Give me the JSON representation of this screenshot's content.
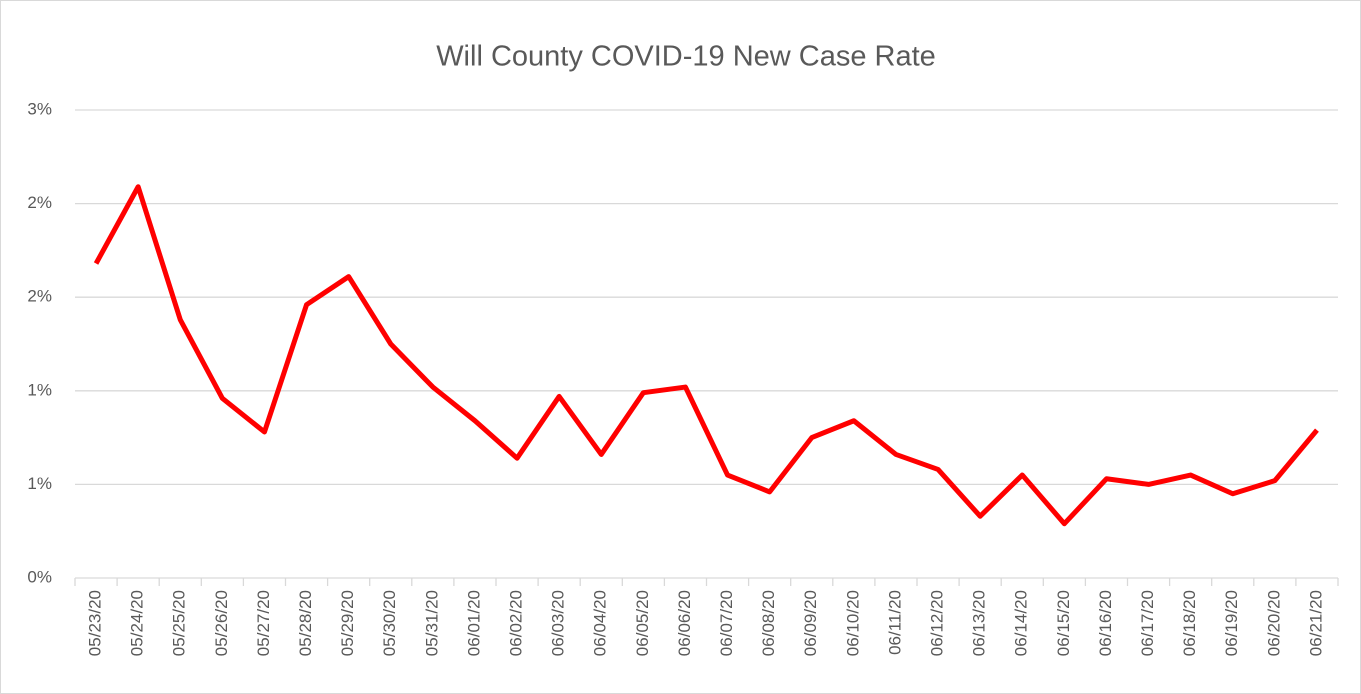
{
  "chart_data": {
    "type": "line",
    "title": "Will County COVID-19 New Case Rate",
    "categories": [
      "05/23/20",
      "05/24/20",
      "05/25/20",
      "05/26/20",
      "05/27/20",
      "05/28/20",
      "05/29/20",
      "05/30/20",
      "05/31/20",
      "06/01/20",
      "06/02/20",
      "06/03/20",
      "06/04/20",
      "06/05/20",
      "06/06/20",
      "06/07/20",
      "06/08/20",
      "06/09/20",
      "06/10/20",
      "06/11/20",
      "06/12/20",
      "06/13/20",
      "06/14/20",
      "06/15/20",
      "06/16/20",
      "06/17/20",
      "06/18/20",
      "06/19/20",
      "06/20/20",
      "06/21/20"
    ],
    "series": [
      {
        "name": "New Case Rate",
        "color": "#ff0000",
        "values": [
          1.68,
          2.09,
          1.38,
          0.96,
          0.78,
          1.46,
          1.61,
          1.25,
          1.02,
          0.84,
          0.64,
          0.97,
          0.66,
          0.99,
          1.02,
          0.55,
          0.46,
          0.75,
          0.84,
          0.66,
          0.58,
          0.33,
          0.55,
          0.29,
          0.53,
          0.5,
          0.55,
          0.45,
          0.52,
          0.79
        ]
      }
    ],
    "ylim": [
      0,
      2.5
    ],
    "yticks": [
      {
        "value": 0,
        "label": "0%"
      },
      {
        "value": 0.5,
        "label": "1%"
      },
      {
        "value": 1,
        "label": "1%"
      },
      {
        "value": 1.5,
        "label": "2%"
      },
      {
        "value": 2,
        "label": "2%"
      },
      {
        "value": 2.5,
        "label": "3%"
      }
    ],
    "grid": true
  }
}
